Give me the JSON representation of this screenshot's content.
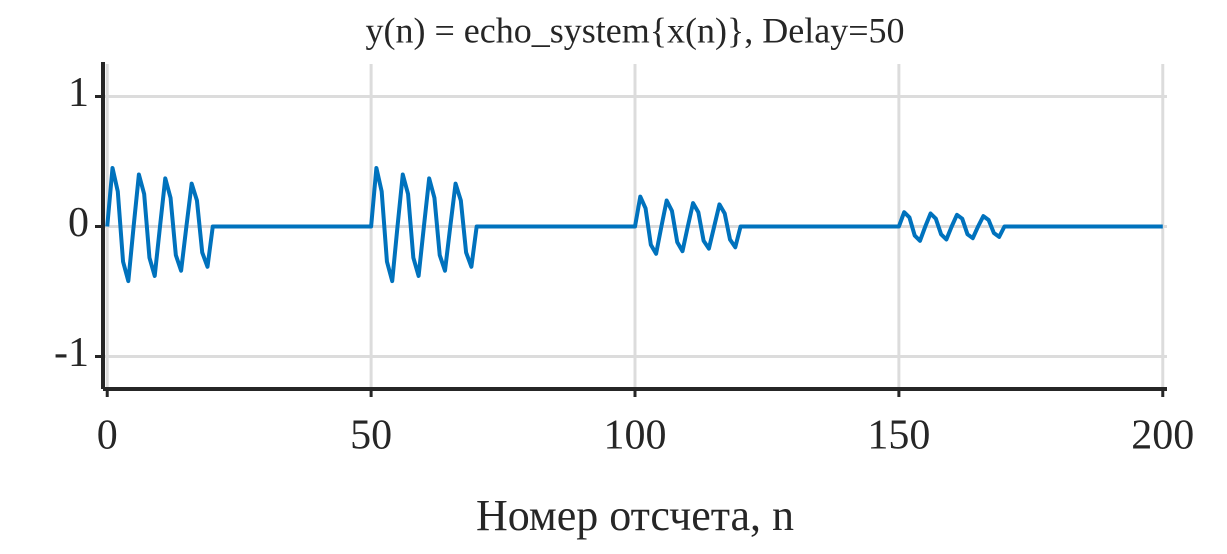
{
  "chart_data": {
    "type": "line",
    "title": "y(n) = echo_system{x(n)}, Delay=50",
    "x_label": "Номер отсчета, n",
    "x": [
      0,
      1,
      2,
      3,
      4,
      5,
      6,
      7,
      8,
      9,
      10,
      11,
      12,
      13,
      14,
      15,
      16,
      17,
      18,
      19,
      20,
      21,
      22,
      23,
      24,
      25,
      26,
      27,
      28,
      29,
      30,
      31,
      32,
      33,
      34,
      35,
      36,
      37,
      38,
      39,
      40,
      41,
      42,
      43,
      44,
      45,
      46,
      47,
      48,
      49,
      50,
      51,
      52,
      53,
      54,
      55,
      56,
      57,
      58,
      59,
      60,
      61,
      62,
      63,
      64,
      65,
      66,
      67,
      68,
      69,
      70,
      71,
      72,
      73,
      74,
      75,
      76,
      77,
      78,
      79,
      80,
      81,
      82,
      83,
      84,
      85,
      86,
      87,
      88,
      89,
      90,
      91,
      92,
      93,
      94,
      95,
      96,
      97,
      98,
      99,
      100,
      101,
      102,
      103,
      104,
      105,
      106,
      107,
      108,
      109,
      110,
      111,
      112,
      113,
      114,
      115,
      116,
      117,
      118,
      119,
      120,
      121,
      122,
      123,
      124,
      125,
      126,
      127,
      128,
      129,
      130,
      131,
      132,
      133,
      134,
      135,
      136,
      137,
      138,
      139,
      140,
      141,
      142,
      143,
      144,
      145,
      146,
      147,
      148,
      149,
      150,
      151,
      152,
      153,
      154,
      155,
      156,
      157,
      158,
      159,
      160,
      161,
      162,
      163,
      164,
      165,
      166,
      167,
      168,
      169,
      170,
      171,
      172,
      173,
      174,
      175,
      176,
      177,
      178,
      179,
      180,
      181,
      182,
      183,
      184,
      185,
      186,
      187,
      188,
      189,
      190,
      191,
      192,
      193,
      194,
      195,
      196,
      197,
      198,
      199,
      200
    ],
    "series": [
      {
        "color": "#0072bd",
        "values": [
          0,
          0.45,
          0.27,
          -0.27,
          -0.42,
          0,
          0.4,
          0.25,
          -0.24,
          -0.38,
          0,
          0.37,
          0.22,
          -0.22,
          -0.34,
          0,
          0.33,
          0.2,
          -0.2,
          -0.31,
          0,
          0,
          0,
          0,
          0,
          0,
          0,
          0,
          0,
          0,
          0,
          0,
          0,
          0,
          0,
          0,
          0,
          0,
          0,
          0,
          0,
          0,
          0,
          0,
          0,
          0,
          0,
          0,
          0,
          0,
          0,
          0.45,
          0.27,
          -0.27,
          -0.42,
          0,
          0.4,
          0.25,
          -0.24,
          -0.38,
          0,
          0.37,
          0.22,
          -0.22,
          -0.34,
          0,
          0.33,
          0.2,
          -0.2,
          -0.31,
          0,
          0,
          0,
          0,
          0,
          0,
          0,
          0,
          0,
          0,
          0,
          0,
          0,
          0,
          0,
          0,
          0,
          0,
          0,
          0,
          0,
          0,
          0,
          0,
          0,
          0,
          0,
          0,
          0,
          0,
          0,
          0.23,
          0.14,
          -0.14,
          -0.21,
          0,
          0.2,
          0.12,
          -0.12,
          -0.19,
          0,
          0.18,
          0.11,
          -0.11,
          -0.17,
          0,
          0.17,
          0.1,
          -0.1,
          -0.16,
          0,
          0,
          0,
          0,
          0,
          0,
          0,
          0,
          0,
          0,
          0,
          0,
          0,
          0,
          0,
          0,
          0,
          0,
          0,
          0,
          0,
          0,
          0,
          0,
          0,
          0,
          0,
          0,
          0,
          0,
          0,
          0.11,
          0.07,
          -0.07,
          -0.11,
          0,
          0.1,
          0.06,
          -0.06,
          -0.1,
          0,
          0.09,
          0.06,
          -0.06,
          -0.09,
          0,
          0.08,
          0.05,
          -0.05,
          -0.08,
          0,
          0,
          0,
          0,
          0,
          0,
          0,
          0,
          0,
          0,
          0,
          0,
          0,
          0,
          0,
          0,
          0,
          0,
          0,
          0,
          0,
          0,
          0,
          0,
          0,
          0,
          0,
          0,
          0,
          0,
          0
        ]
      }
    ],
    "xlim": [
      -0.8,
      200.8
    ],
    "xticks": [
      0,
      50,
      100,
      150,
      200
    ],
    "ylim": [
      -1.25,
      1.25
    ],
    "yticks": [
      -1,
      0,
      1
    ],
    "grid": true
  }
}
